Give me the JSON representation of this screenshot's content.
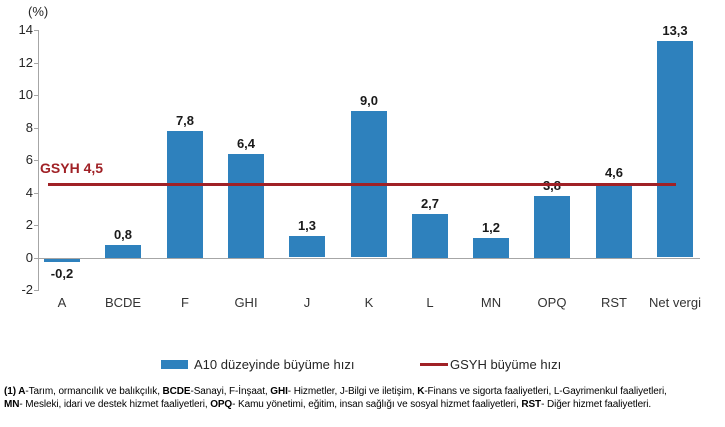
{
  "chart_data": {
    "type": "bar",
    "title": "",
    "unit_label": "(%)",
    "categories": [
      "A",
      "BCDE",
      "F",
      "GHI",
      "J",
      "K",
      "L",
      "MN",
      "OPQ",
      "RST",
      "Net vergi"
    ],
    "series": [
      {
        "name": "A10 düzeyinde büyüme hızı",
        "values": [
          -0.2,
          0.8,
          7.8,
          6.4,
          1.3,
          9.0,
          2.7,
          1.2,
          3.8,
          4.6,
          13.3
        ],
        "value_labels": [
          "-0,2",
          "0,8",
          "7,8",
          "6,4",
          "1,3",
          "9,0",
          "2,7",
          "1,2",
          "3,8",
          "4,6",
          "13,3"
        ]
      }
    ],
    "reference_line": {
      "name": "GSYH büyüme hızı",
      "value": 4.5,
      "label": "GSYH 4,5"
    },
    "y_ticks": [
      14,
      12,
      10,
      8,
      6,
      4,
      2,
      0,
      -2
    ],
    "ylim": [
      -2,
      14
    ],
    "grid": false,
    "legend_position": "bottom",
    "colors": {
      "bar": "#2e81bd",
      "reference_line": "#a02126",
      "axis": "#a6a6a6",
      "value_label": "#1a1a1a",
      "category_label": "#333333"
    }
  },
  "legend": {
    "items": [
      {
        "label": "A10 düzeyinde büyüme hızı",
        "swatch": "bar"
      },
      {
        "label": "GSYH büyüme hızı",
        "swatch": "line"
      }
    ]
  },
  "footnote": {
    "lines": [
      [
        {
          "t": "(1) A",
          "b": true
        },
        {
          "t": "-Tarım, ormancılık ve balıkçılık, ",
          "b": false
        },
        {
          "t": "BCDE",
          "b": true
        },
        {
          "t": "-Sanayi, F-İnşaat, ",
          "b": false
        },
        {
          "t": "GHI",
          "b": true
        },
        {
          "t": "- Hizmetler, J-Bilgi ve iletişim, ",
          "b": false
        },
        {
          "t": "K",
          "b": true
        },
        {
          "t": "-Finans ve sigorta faaliyetleri, L-Gayrimenkul faaliyetleri,",
          "b": false
        }
      ],
      [
        {
          "t": "MN",
          "b": true
        },
        {
          "t": "- Mesleki, idari ve destek hizmet faaliyetleri, ",
          "b": false
        },
        {
          "t": "OPQ",
          "b": true
        },
        {
          "t": "- Kamu yönetimi, eğitim, insan sağlığı ve sosyal hizmet faaliyetleri, ",
          "b": false
        },
        {
          "t": "RST",
          "b": true
        },
        {
          "t": "- Diğer hizmet faaliyetleri.",
          "b": false
        }
      ]
    ]
  }
}
